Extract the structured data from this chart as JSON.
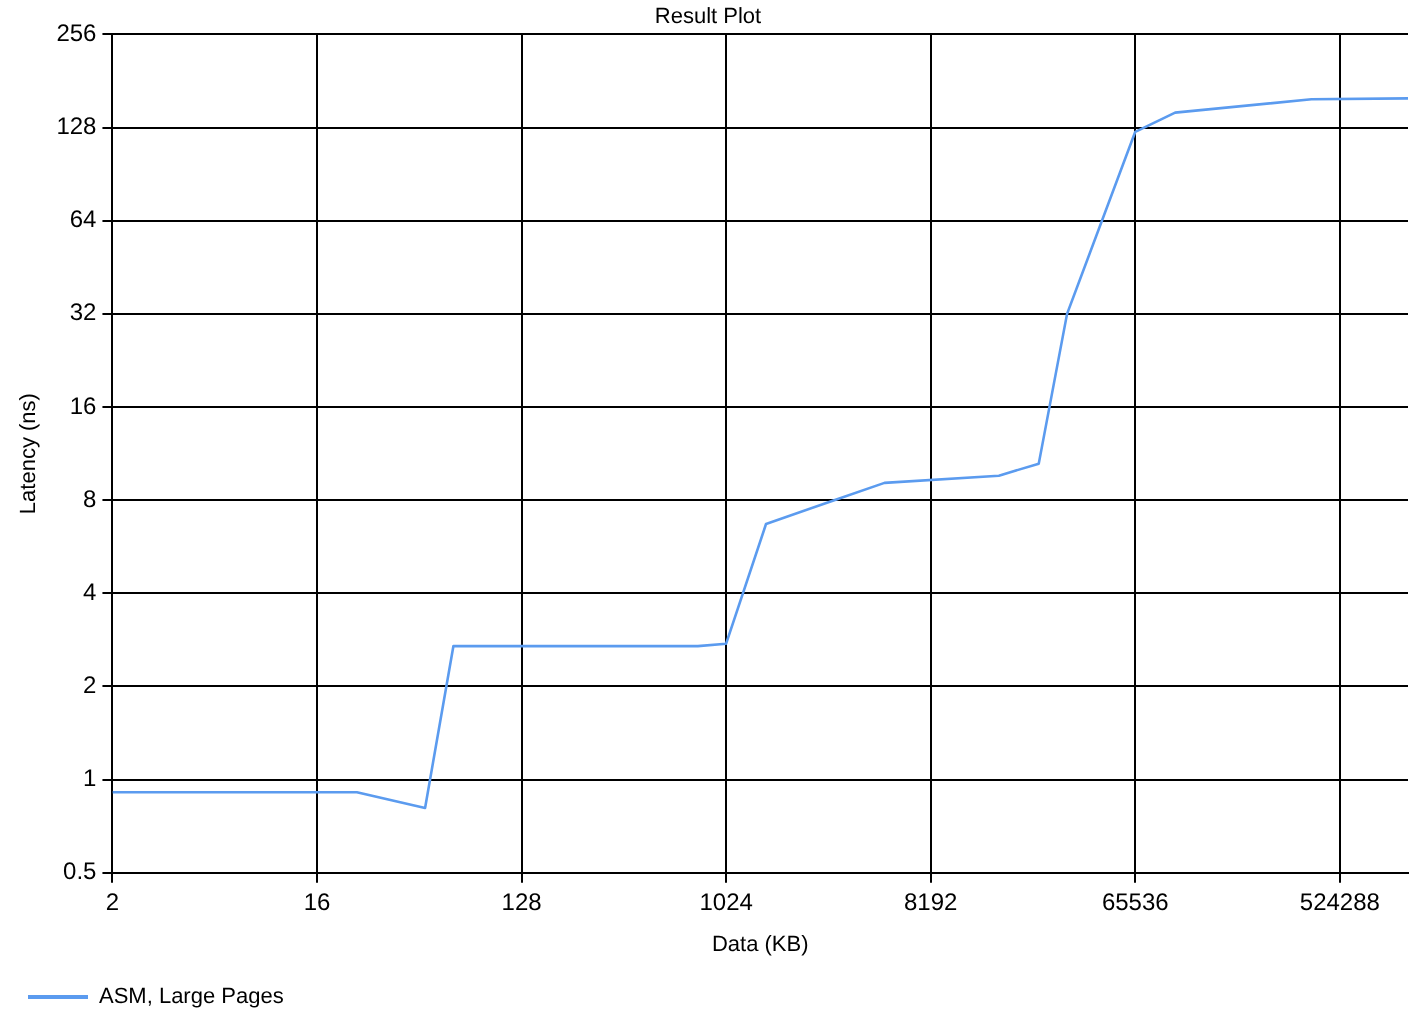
{
  "chart_data": {
    "type": "line",
    "title": "Result Plot",
    "xlabel": "Data (KB)",
    "ylabel": "Latency (ns)",
    "log": "xy",
    "grid": true,
    "legend": "bottom left",
    "marker": "none",
    "line_style": "solid",
    "x": [
      2,
      16,
      24,
      48,
      64,
      768,
      1024,
      1536,
      3072,
      5120,
      16384,
      24576,
      32768,
      65536,
      98304,
      393216,
      1048576
    ],
    "series": [
      {
        "name": "ASM, Large Pages",
        "color": "#5b9bef",
        "values": [
          0.91,
          0.91,
          0.91,
          0.81,
          2.7,
          2.7,
          2.75,
          6.7,
          8,
          9.1,
          9.6,
          10.5,
          32,
          124,
          143,
          158,
          159
        ]
      }
    ],
    "xlim": [
      2,
      1048576
    ],
    "xticks": [
      2,
      16,
      128,
      1024,
      8192,
      65536,
      524288
    ],
    "ylim": [
      0.5,
      256
    ],
    "yticks": [
      0.5,
      1,
      2,
      4,
      8,
      16,
      32,
      64,
      128,
      256
    ]
  }
}
